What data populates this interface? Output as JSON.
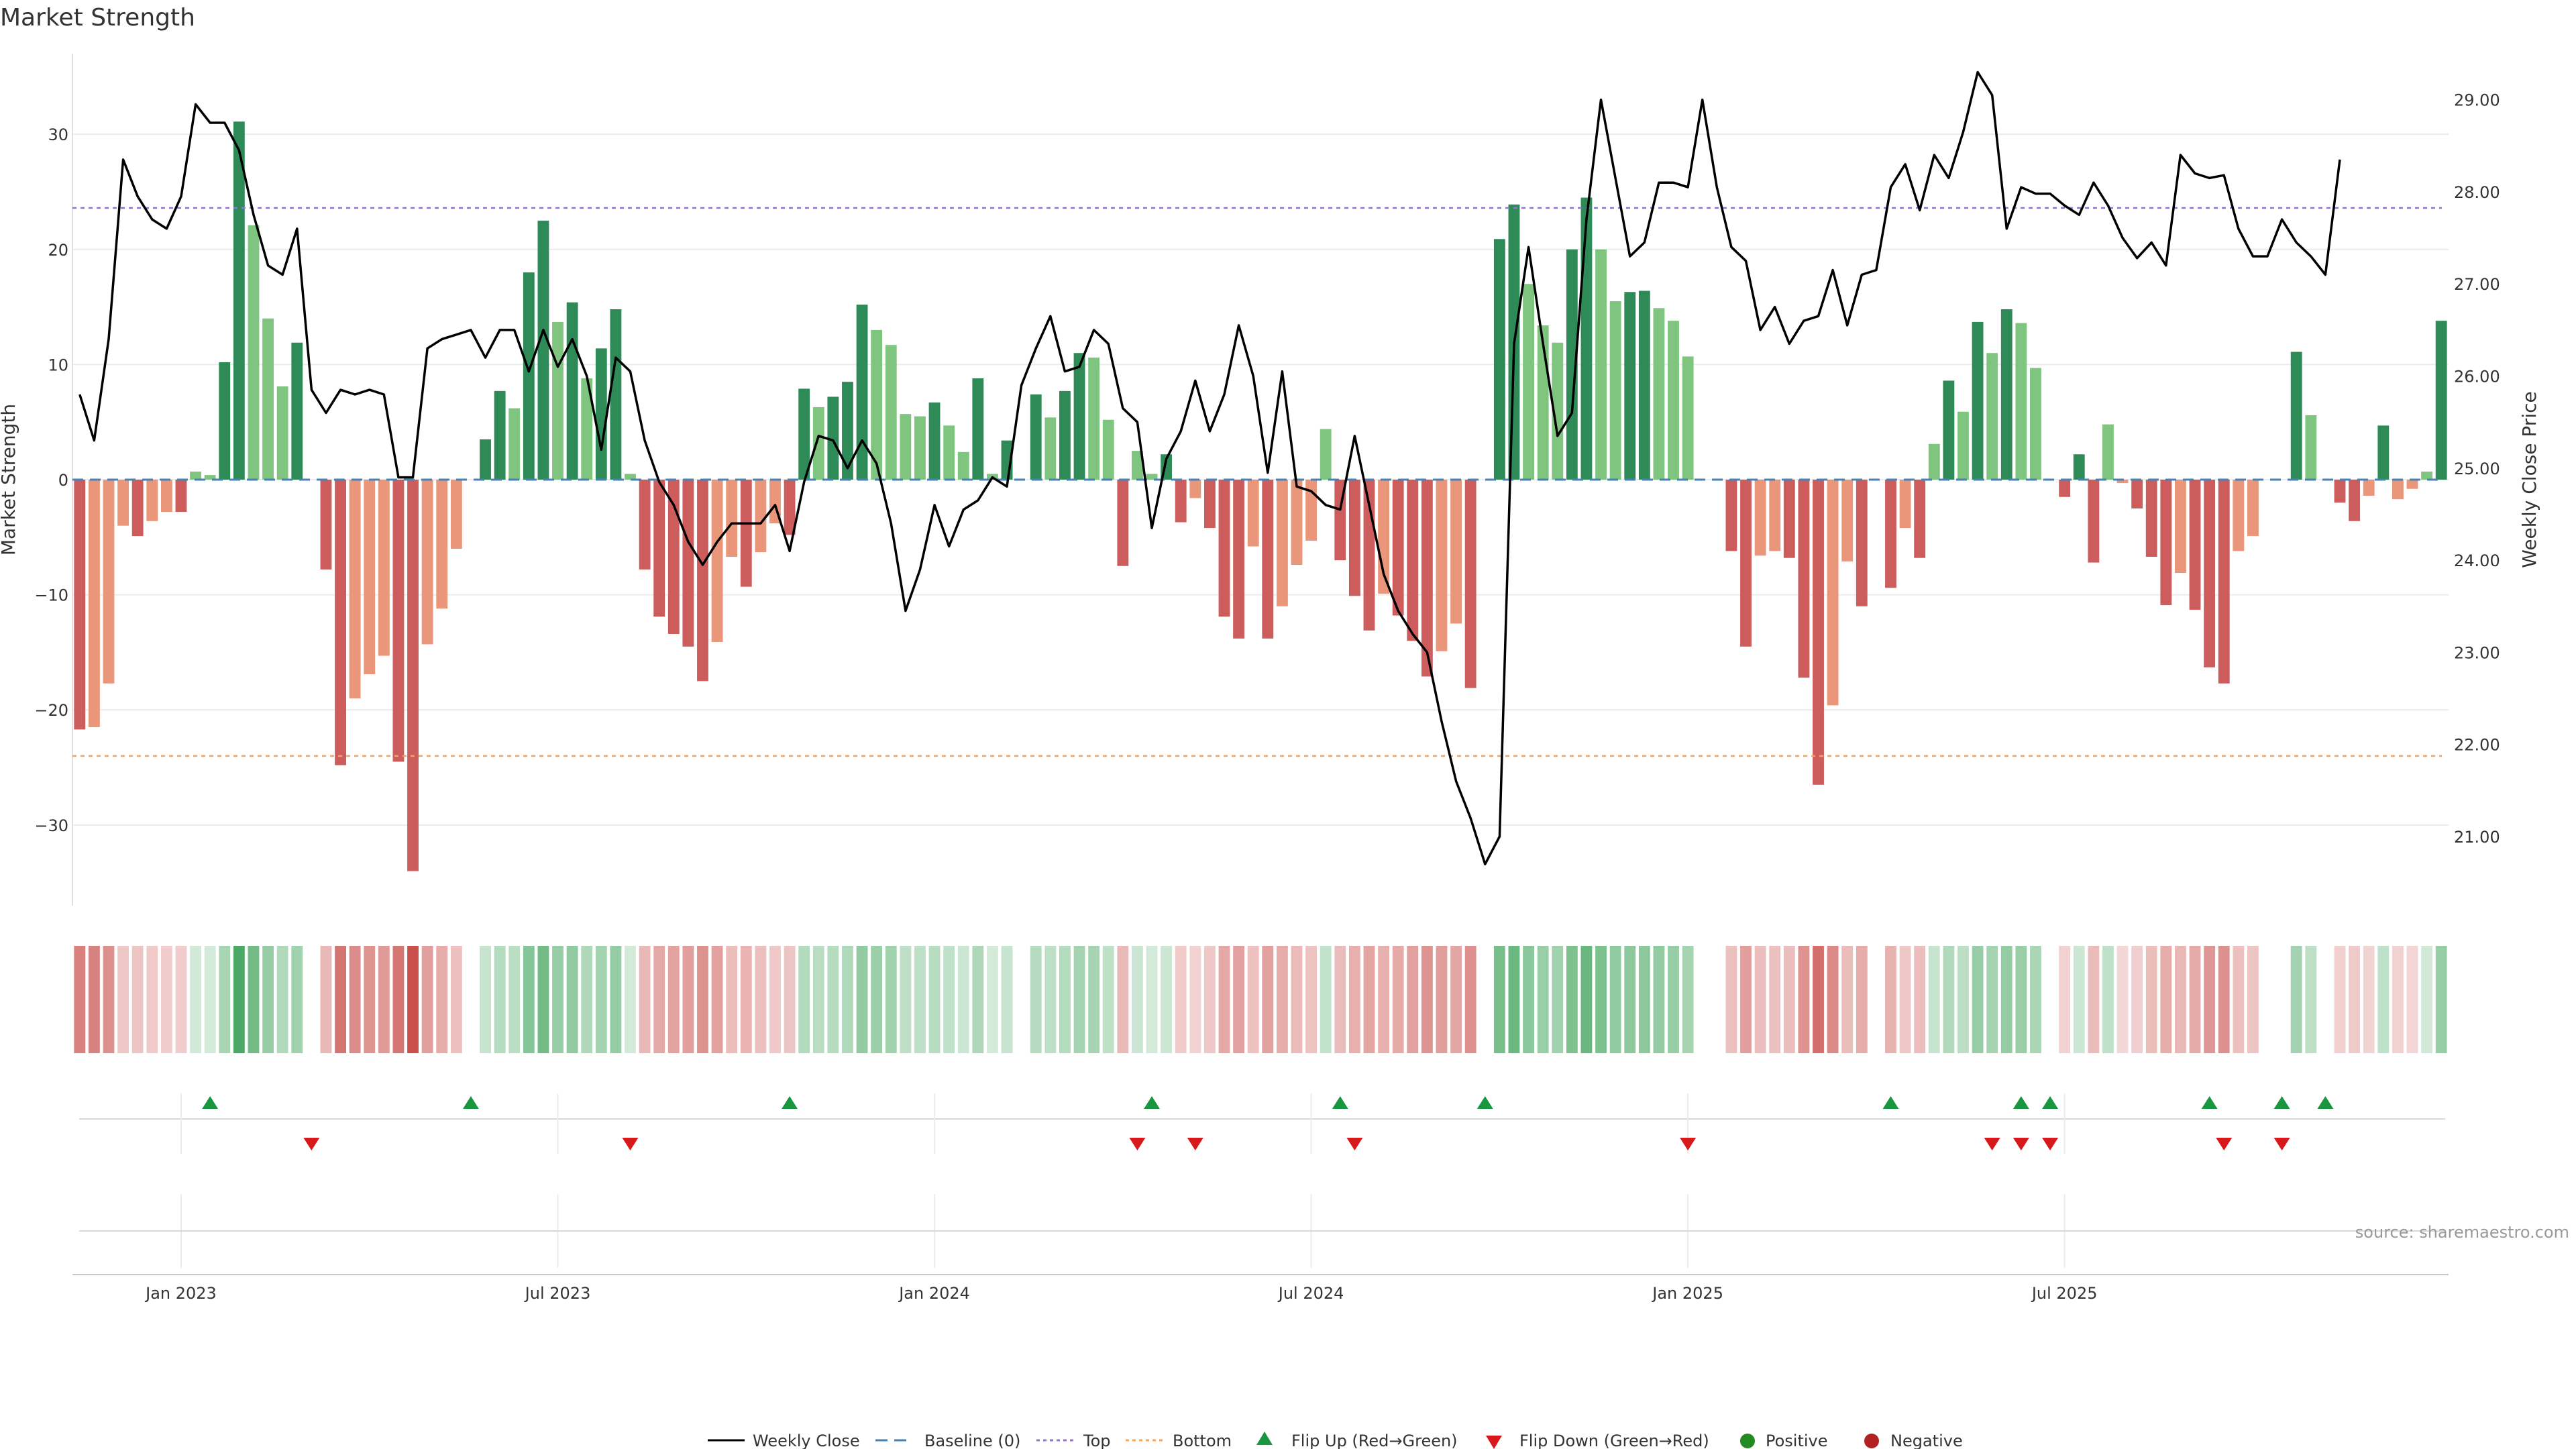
{
  "chart_data": {
    "type": "bar",
    "title": "Market Strength",
    "ylabel_left": "Market Strength",
    "ylabel_right": "Weekly Close Price",
    "ylim_left": [
      -37,
      37
    ],
    "ylim_right": [
      20.25,
      29.5
    ],
    "left_ticks": [
      30,
      20,
      10,
      0,
      -10,
      -20,
      -30
    ],
    "left_tick_labels": [
      "30",
      "20",
      "10",
      "0",
      "−10",
      "−20",
      "−30"
    ],
    "right_ticks": [
      29,
      28,
      27,
      26,
      25,
      24,
      23,
      22,
      21
    ],
    "right_tick_labels": [
      "29.00",
      "28.00",
      "27.00",
      "26.00",
      "25.00",
      "24.00",
      "23.00",
      "22.00",
      "21.00"
    ],
    "x_tick_labels": [
      "Jan 2023",
      "Jul 2023",
      "Jan 2024",
      "Jul 2024",
      "Jan 2025",
      "Jul 2025"
    ],
    "x_tick_weeks": [
      7,
      33,
      59,
      85,
      111,
      137
    ],
    "top_line": 23.6,
    "bottom_line": -24.0,
    "strength": [
      -21.7,
      -21.5,
      -17.7,
      -4.0,
      -4.9,
      -3.6,
      -2.8,
      -2.8,
      0.7,
      0.4,
      10.2,
      31.1,
      22.1,
      14.0,
      8.1,
      11.9,
      0.0,
      -7.8,
      -24.8,
      -19.0,
      -16.9,
      -15.3,
      -24.5,
      -34.0,
      -14.3,
      -11.2,
      -6.0,
      0.0,
      3.5,
      7.7,
      6.2,
      18.0,
      22.5,
      13.7,
      15.4,
      8.8,
      11.4,
      14.8,
      0.5,
      -7.8,
      -11.9,
      -13.4,
      -14.5,
      -17.5,
      -14.1,
      -6.7,
      -9.3,
      -6.3,
      -3.8,
      -4.8,
      7.9,
      6.3,
      7.2,
      8.5,
      15.2,
      13.0,
      11.7,
      5.7,
      5.5,
      6.7,
      4.7,
      2.4,
      8.8,
      0.5,
      3.4,
      0.0,
      7.4,
      5.4,
      7.7,
      11.0,
      10.6,
      5.2,
      -7.5,
      2.5,
      0.5,
      2.2,
      -3.7,
      -1.6,
      -4.2,
      -11.9,
      -13.8,
      -5.8,
      -13.8,
      -11.0,
      -7.4,
      -5.3,
      4.4,
      -7.0,
      -10.1,
      -13.1,
      -9.9,
      -11.8,
      -14.0,
      -17.1,
      -14.9,
      -12.5,
      -18.1,
      0.0,
      20.9,
      23.9,
      17.0,
      13.4,
      11.9,
      20.0,
      24.5,
      20.0,
      15.5,
      16.3,
      16.4,
      14.9,
      13.8,
      10.7,
      0.0,
      0.0,
      -6.2,
      -14.5,
      -6.6,
      -6.2,
      -6.8,
      -17.2,
      -26.5,
      -19.6,
      -7.1,
      -11.0,
      0.0,
      -9.4,
      -4.2,
      -6.8,
      3.1,
      8.6,
      5.9,
      13.7,
      11.0,
      14.8,
      13.6,
      9.7,
      0.0,
      -1.5,
      2.2,
      -7.2,
      4.8,
      -0.3,
      -2.5,
      -6.7,
      -10.9,
      -8.1,
      -11.3,
      -16.3,
      -17.7,
      -6.2,
      -4.9,
      0.0,
      0.0,
      11.1,
      5.6,
      0.0,
      -2.0,
      -3.6,
      -1.4,
      4.7,
      -1.7,
      -0.8,
      0.7,
      13.8
    ],
    "weekly_close": [
      25.8,
      25.3,
      26.4,
      28.35,
      27.95,
      27.7,
      27.6,
      27.95,
      28.95,
      28.75,
      28.75,
      28.45,
      27.75,
      27.2,
      27.1,
      27.6,
      25.85,
      25.6,
      25.85,
      25.8,
      25.85,
      25.8,
      24.9,
      24.9,
      26.3,
      26.4,
      26.45,
      26.5,
      26.2,
      26.5,
      26.5,
      26.05,
      26.5,
      26.1,
      26.4,
      26.0,
      25.2,
      26.2,
      26.05,
      25.3,
      24.85,
      24.6,
      24.2,
      23.95,
      24.2,
      24.4,
      24.4,
      24.4,
      24.6,
      24.1,
      24.85,
      25.35,
      25.3,
      25.0,
      25.3,
      25.05,
      24.4,
      23.45,
      23.9,
      24.6,
      24.15,
      24.55,
      24.65,
      24.9,
      24.8,
      25.9,
      26.3,
      26.65,
      26.05,
      26.1,
      26.5,
      26.35,
      25.65,
      25.5,
      24.35,
      25.1,
      25.4,
      25.95,
      25.4,
      25.8,
      26.55,
      26.0,
      24.95,
      26.05,
      24.8,
      24.75,
      24.6,
      24.55,
      25.35,
      24.6,
      23.85,
      23.45,
      23.2,
      23.0,
      22.25,
      21.6,
      21.2,
      20.7,
      21.0,
      26.35,
      27.4,
      26.35,
      25.35,
      25.6,
      27.7,
      29.0,
      28.15,
      27.3,
      27.45,
      28.1,
      28.1,
      28.05,
      29.0,
      28.05,
      27.4,
      27.25,
      26.5,
      26.75,
      26.35,
      26.6,
      26.65,
      27.15,
      26.55,
      27.1,
      27.15,
      28.05,
      28.3,
      27.8,
      28.4,
      28.15,
      28.65,
      29.3,
      29.05,
      27.6,
      28.05,
      27.98,
      27.98,
      27.85,
      27.75,
      28.1,
      27.85,
      27.5,
      27.28,
      27.45,
      27.2,
      28.4,
      28.2,
      28.15,
      28.18,
      27.6,
      27.3,
      27.3,
      27.7,
      27.45,
      27.3,
      27.1,
      28.35
    ]
  },
  "flip_up_weeks": [
    9,
    27,
    49,
    74,
    87,
    97,
    125,
    134,
    136,
    147,
    152,
    155
  ],
  "flip_down_weeks": [
    16,
    38,
    73,
    77,
    88,
    111,
    132,
    134,
    136,
    148,
    152
  ],
  "source": "source: sharemaestro.com",
  "legend": {
    "weekly_close": "Weekly Close",
    "baseline": "Baseline (0)",
    "top": "Top",
    "bottom": "Bottom",
    "flip_up": "Flip Up (Red→Green)",
    "flip_down": "Flip Down (Green→Red)",
    "positive": "Positive",
    "negative": "Negative"
  },
  "colors": {
    "green_dark": "#2e8b57",
    "green_light": "#7fc47f",
    "red_dark": "#cd5c5c",
    "red_light": "#e9967a",
    "line": "#000000",
    "top_line": "#9370db",
    "bottom_line": "#f4a460",
    "baseline": "#4682b4",
    "flip_up": "#1a9641",
    "flip_down": "#d7191c",
    "positive": "#228b22",
    "negative": "#b22222"
  }
}
